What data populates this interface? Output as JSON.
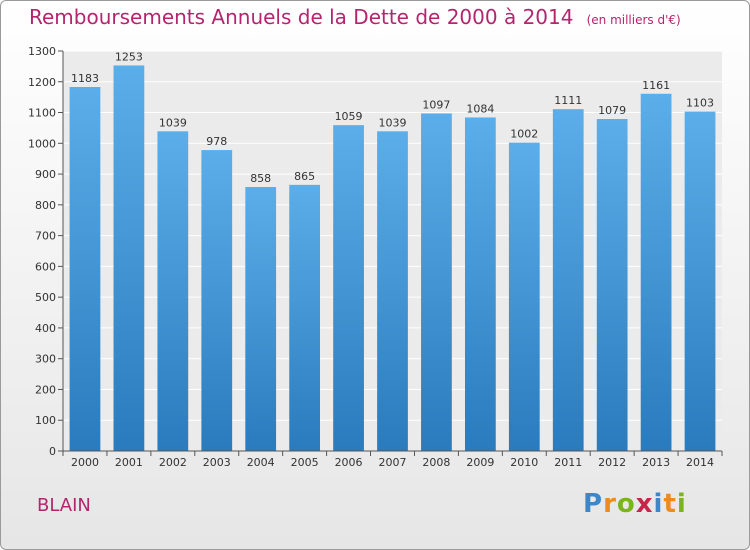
{
  "header": {
    "title": "Remboursements Annuels de la Dette de 2000 à 2014",
    "unit": "(en milliers d'€)"
  },
  "footer": {
    "commune": "BLAIN",
    "logo_letters": [
      "P",
      "r",
      "o",
      "x",
      "i",
      "t",
      "i"
    ],
    "logo_colors": [
      "#3f86c8",
      "#ef8a1f",
      "#7ab51d",
      "#c8254b",
      "#3f86c8",
      "#ef8a1f",
      "#7ab51d"
    ]
  },
  "chart_data": {
    "type": "bar",
    "categories": [
      "2000",
      "2001",
      "2002",
      "2003",
      "2004",
      "2005",
      "2006",
      "2007",
      "2008",
      "2009",
      "2010",
      "2011",
      "2012",
      "2013",
      "2014"
    ],
    "values": [
      1183,
      1253,
      1039,
      978,
      858,
      865,
      1059,
      1039,
      1097,
      1084,
      1002,
      1111,
      1079,
      1161,
      1103
    ],
    "title": "Remboursements Annuels de la Dette de 2000 à 2014",
    "ylim": [
      0,
      1300
    ],
    "yticks": [
      0,
      100,
      200,
      300,
      400,
      500,
      600,
      700,
      800,
      900,
      1000,
      1100,
      1200,
      1300
    ],
    "grid": true,
    "bar_color_top": "#5baee9",
    "bar_color_bottom": "#2a7bbd"
  }
}
